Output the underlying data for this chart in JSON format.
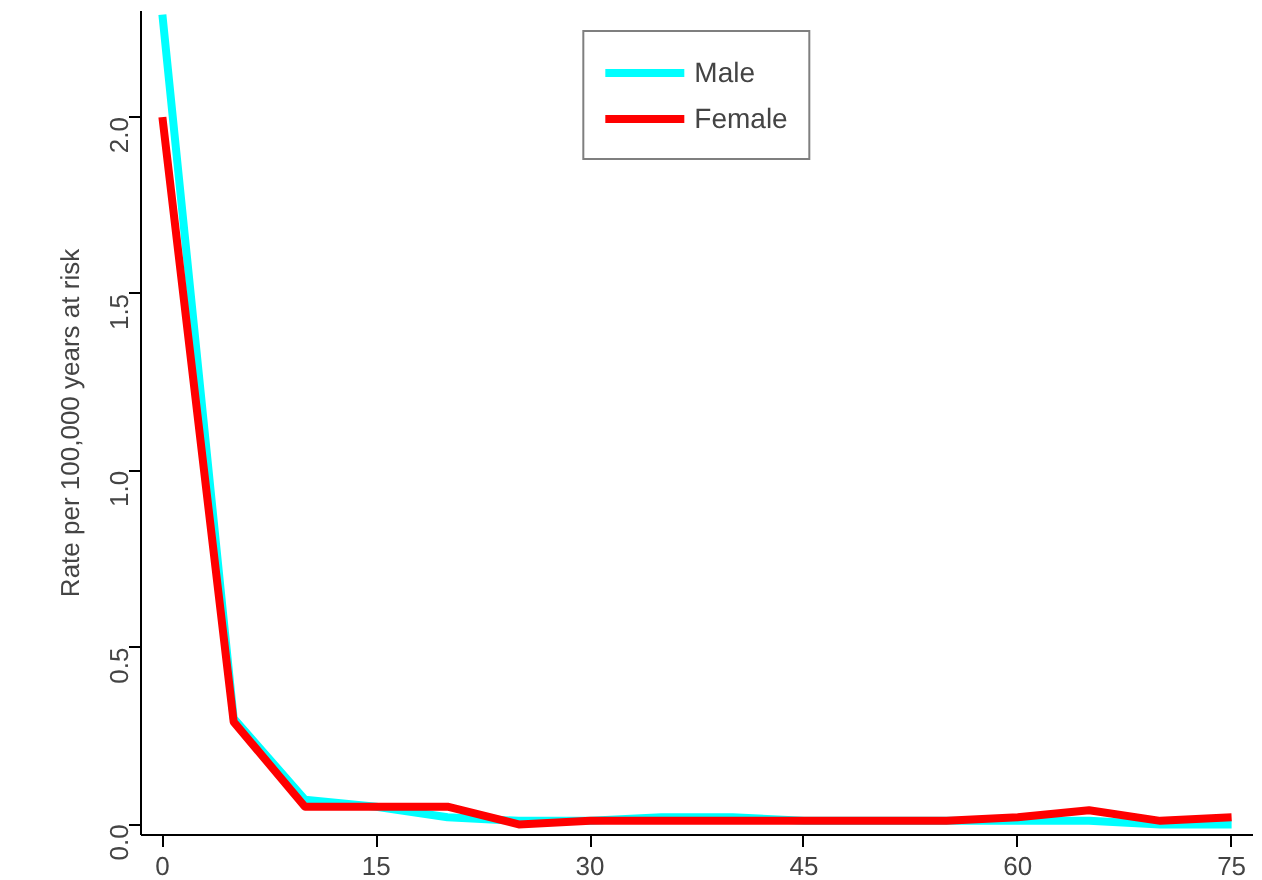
{
  "chart_data": {
    "type": "line",
    "ylabel": "Rate per 100,000 years at risk",
    "x": [
      0,
      5,
      10,
      15,
      20,
      25,
      30,
      35,
      40,
      45,
      50,
      55,
      60,
      65,
      70,
      75
    ],
    "series": [
      {
        "name": "Male",
        "color": "#00ffff",
        "values": [
          2.29,
          0.3,
          0.07,
          0.05,
          0.02,
          0.01,
          0.01,
          0.02,
          0.02,
          0.01,
          0.01,
          0.01,
          0.01,
          0.01,
          0.0,
          0.0
        ]
      },
      {
        "name": "Female",
        "color": "#ff0000",
        "values": [
          2.0,
          0.29,
          0.05,
          0.05,
          0.05,
          0.0,
          0.01,
          0.01,
          0.01,
          0.01,
          0.01,
          0.01,
          0.02,
          0.04,
          0.01,
          0.02
        ]
      }
    ],
    "xlim": [
      -1.5,
      76.5
    ],
    "ylim": [
      -0.03,
      2.3
    ],
    "xticks": [
      0,
      15,
      30,
      45,
      60,
      75
    ],
    "yticks": [
      {
        "value": 0,
        "label": "0.0"
      },
      0.5,
      {
        "value": 1,
        "label": "1.0"
      },
      1.5,
      {
        "value": 2,
        "label": "2.0"
      }
    ],
    "grid": false,
    "legend": "top",
    "marker": "none",
    "line_style": "solid"
  }
}
